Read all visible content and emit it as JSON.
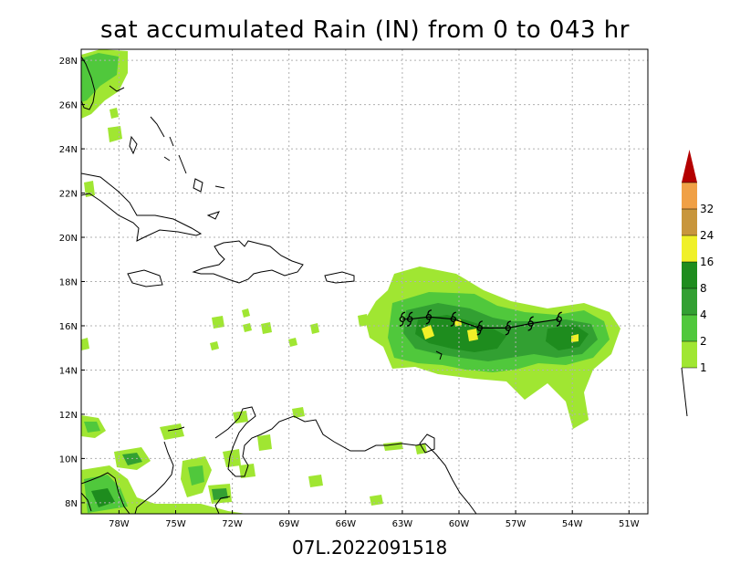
{
  "title": "sat accumulated Rain (IN) from 0 to 043 hr",
  "footer": "07L.2022091518",
  "map": {
    "lon_range": [
      -80,
      -50
    ],
    "lat_range": [
      7.5,
      28.5
    ],
    "lat_ticks": [
      {
        "v": 28,
        "label": "28N"
      },
      {
        "v": 26,
        "label": "26N"
      },
      {
        "v": 24,
        "label": "24N"
      },
      {
        "v": 22,
        "label": "22N"
      },
      {
        "v": 20,
        "label": "20N"
      },
      {
        "v": 18,
        "label": "18N"
      },
      {
        "v": 16,
        "label": "16N"
      },
      {
        "v": 14,
        "label": "14N"
      },
      {
        "v": 12,
        "label": "12N"
      },
      {
        "v": 10,
        "label": "10N"
      },
      {
        "v": 8,
        "label": "8N"
      }
    ],
    "lon_ticks": [
      {
        "v": -78,
        "label": "78W"
      },
      {
        "v": -75,
        "label": "75W"
      },
      {
        "v": -72,
        "label": "72W"
      },
      {
        "v": -69,
        "label": "69W"
      },
      {
        "v": -66,
        "label": "66W"
      },
      {
        "v": -63,
        "label": "63W"
      },
      {
        "v": -60,
        "label": "60W"
      },
      {
        "v": -57,
        "label": "57W"
      },
      {
        "v": -54,
        "label": "54W"
      },
      {
        "v": -51,
        "label": "51W"
      }
    ],
    "grid": true,
    "storm_track": [
      {
        "lon": -54.7,
        "lat": 16.3
      },
      {
        "lon": -56.2,
        "lat": 16.1
      },
      {
        "lon": -57.4,
        "lat": 15.9
      },
      {
        "lon": -58.9,
        "lat": 15.9
      },
      {
        "lon": -60.3,
        "lat": 16.3
      },
      {
        "lon": -61.6,
        "lat": 16.4
      },
      {
        "lon": -62.6,
        "lat": 16.3
      },
      {
        "lon": -63.0,
        "lat": 16.3
      }
    ],
    "storm_symbol": "tropical-storm-symbol"
  },
  "colorbar": {
    "colors": [
      "#a0e632",
      "#50c83c",
      "#32a032",
      "#1e8c1e",
      "#f0f028",
      "#c8963c",
      "#f0a046",
      "#b40000"
    ],
    "labels": [
      "1",
      "2",
      "4",
      "8",
      "16",
      "24",
      "32"
    ]
  }
}
